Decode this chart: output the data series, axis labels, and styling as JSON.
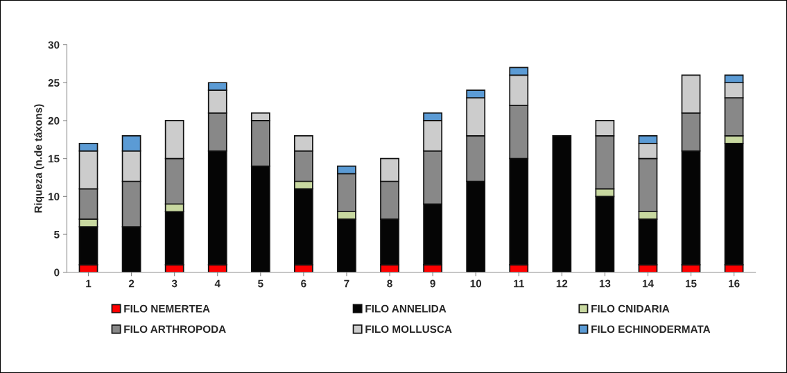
{
  "chart_data": {
    "type": "bar",
    "stacked": true,
    "ylabel": "Riqueza (n.de táxons)",
    "categories": [
      "1",
      "2",
      "3",
      "4",
      "5",
      "6",
      "7",
      "8",
      "9",
      "10",
      "11",
      "12",
      "13",
      "14",
      "15",
      "16"
    ],
    "series": [
      {
        "name": "FILO NEMERTEA",
        "color": "#ff0000",
        "values": [
          1,
          0,
          1,
          1,
          0,
          1,
          0,
          1,
          1,
          0,
          1,
          0,
          0,
          1,
          1,
          1
        ]
      },
      {
        "name": "FILO ANNELIDA",
        "color": "#050505",
        "values": [
          5,
          6,
          7,
          15,
          14,
          10,
          7,
          6,
          8,
          12,
          14,
          18,
          10,
          6,
          15,
          16
        ]
      },
      {
        "name": "FILO CNIDARIA",
        "color": "#c8d8a0",
        "values": [
          1,
          0,
          1,
          0,
          0,
          1,
          1,
          0,
          0,
          0,
          0,
          0,
          1,
          1,
          0,
          1
        ]
      },
      {
        "name": "FILO ARTHROPODA",
        "color": "#888888",
        "values": [
          4,
          6,
          6,
          5,
          6,
          4,
          5,
          5,
          7,
          6,
          7,
          0,
          7,
          7,
          5,
          5
        ]
      },
      {
        "name": "FILO MOLLUSCA",
        "color": "#cccccc",
        "values": [
          5,
          4,
          5,
          3,
          1,
          2,
          0,
          3,
          4,
          5,
          4,
          0,
          2,
          2,
          5,
          2
        ]
      },
      {
        "name": "FILO ECHINODERMATA",
        "color": "#5b9bd5",
        "values": [
          1,
          2,
          0,
          1,
          0,
          0,
          1,
          0,
          1,
          1,
          1,
          0,
          0,
          1,
          0,
          1
        ]
      }
    ],
    "ylim": [
      0,
      30
    ],
    "yticks": [
      0,
      5,
      10,
      15,
      20,
      25,
      30
    ],
    "grid": false,
    "legend": "bottom"
  }
}
